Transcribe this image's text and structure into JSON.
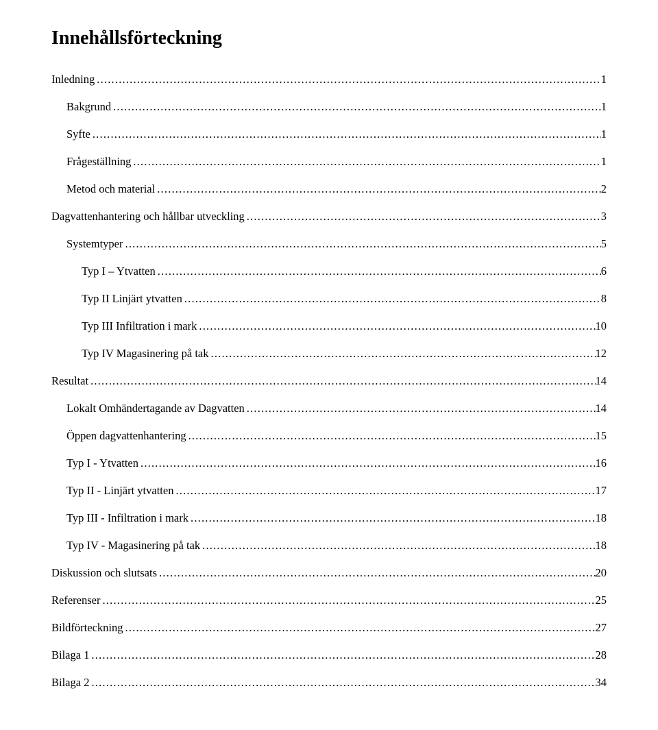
{
  "title": "Innehållsförteckning",
  "entries": [
    {
      "label": "Inledning",
      "page": "1",
      "indent": 0
    },
    {
      "label": "Bakgrund",
      "page": "1",
      "indent": 1
    },
    {
      "label": "Syfte",
      "page": "1",
      "indent": 1
    },
    {
      "label": "Frågeställning",
      "page": "1",
      "indent": 1
    },
    {
      "label": "Metod och material",
      "page": "2",
      "indent": 1
    },
    {
      "label": "Dagvattenhantering och hållbar utveckling",
      "page": "3",
      "indent": 0
    },
    {
      "label": "Systemtyper",
      "page": "5",
      "indent": 1
    },
    {
      "label": "Typ I – Ytvatten",
      "page": "6",
      "indent": 2
    },
    {
      "label": "Typ II Linjärt ytvatten",
      "page": "8",
      "indent": 2
    },
    {
      "label": "Typ III Infiltration i mark",
      "page": "10",
      "indent": 2
    },
    {
      "label": "Typ IV Magasinering på tak",
      "page": "12",
      "indent": 2
    },
    {
      "label": "Resultat",
      "page": "14",
      "indent": 0
    },
    {
      "label": "Lokalt Omhändertagande av Dagvatten",
      "page": "14",
      "indent": 1
    },
    {
      "label": "Öppen dagvattenhantering",
      "page": "15",
      "indent": 1
    },
    {
      "label": "Typ I - Ytvatten",
      "page": "16",
      "indent": 1
    },
    {
      "label": "Typ II - Linjärt ytvatten",
      "page": "17",
      "indent": 1
    },
    {
      "label": "Typ III - Infiltration i mark",
      "page": "18",
      "indent": 1
    },
    {
      "label": "Typ IV - Magasinering på tak",
      "page": "18",
      "indent": 1
    },
    {
      "label": "Diskussion och slutsats",
      "page": "20",
      "indent": 0
    },
    {
      "label": "Referenser",
      "page": "25",
      "indent": 0
    },
    {
      "label": "Bildförteckning",
      "page": "27",
      "indent": 0
    },
    {
      "label": "Bilaga 1",
      "page": "28",
      "indent": 0
    },
    {
      "label": "Bilaga 2",
      "page": "34",
      "indent": 0
    }
  ]
}
